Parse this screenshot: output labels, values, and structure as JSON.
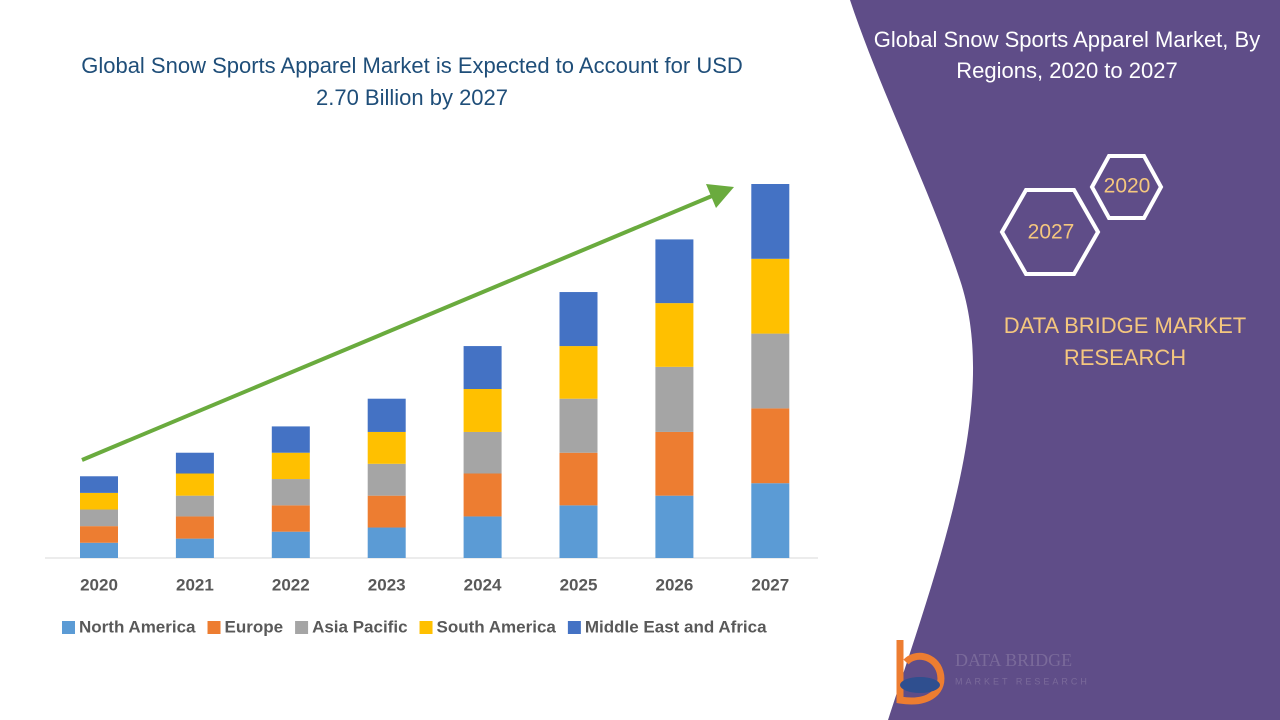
{
  "chart_data": {
    "type": "bar",
    "stacked": true,
    "title": "Global Snow Sports Apparel Market is Expected to Account for USD 2.70 Billion by 2027",
    "categories": [
      "2020",
      "2021",
      "2022",
      "2023",
      "2024",
      "2025",
      "2026",
      "2027"
    ],
    "series": [
      {
        "name": "North America",
        "color": "#5b9bd5",
        "values": [
          0.11,
          0.14,
          0.19,
          0.22,
          0.3,
          0.38,
          0.45,
          0.54
        ]
      },
      {
        "name": "Europe",
        "color": "#ed7d31",
        "values": [
          0.12,
          0.16,
          0.19,
          0.23,
          0.31,
          0.38,
          0.46,
          0.54
        ]
      },
      {
        "name": "Asia Pacific",
        "color": "#a5a5a5",
        "values": [
          0.12,
          0.15,
          0.19,
          0.23,
          0.3,
          0.39,
          0.47,
          0.54
        ]
      },
      {
        "name": "South America",
        "color": "#ffc000",
        "values": [
          0.12,
          0.16,
          0.19,
          0.23,
          0.31,
          0.38,
          0.46,
          0.54
        ]
      },
      {
        "name": "Middle East and Africa",
        "color": "#4472c4",
        "values": [
          0.12,
          0.15,
          0.19,
          0.24,
          0.31,
          0.39,
          0.46,
          0.54
        ]
      }
    ]
  },
  "panel": {
    "heading": "Global Snow Sports Apparel Market, By Regions, 2020 to 2027",
    "hexagons": [
      "2020",
      "2027"
    ],
    "brand": "DATA BRIDGE MARKET RESEARCH",
    "logo": {
      "name": "DATA BRIDGE",
      "tagline": "MARKET RESEARCH"
    }
  }
}
